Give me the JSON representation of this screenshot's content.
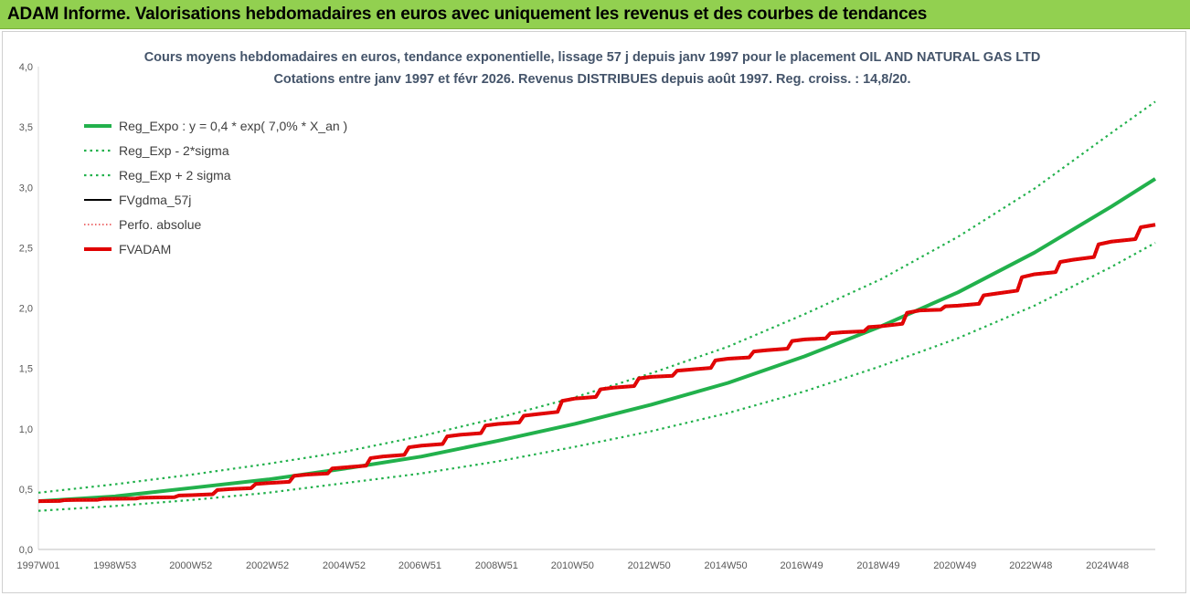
{
  "banner": {
    "title": "ADAM Informe. Valorisations hebdomadaires en euros avec uniquement les revenus et des courbes de tendances"
  },
  "chart_data": {
    "type": "line",
    "title_line1": "Cours moyens hebdomadaires en euros, tendance exponentielle, lissage 57 j depuis janv 1997 pour le placement OIL AND NATURAL GAS LTD",
    "title_line2": "Cotations entre janv 1997 et févr 2026. Revenus DISTRIBUES depuis août 1997. Reg. croiss. : 14,8/20.",
    "xlabel": "",
    "ylabel": "",
    "x_ticks": [
      "1997W01",
      "1998W53",
      "2000W52",
      "2002W52",
      "2004W52",
      "2006W51",
      "2008W51",
      "2010W50",
      "2012W50",
      "2014W50",
      "2016W49",
      "2018W49",
      "2020W49",
      "2022W48",
      "2024W48"
    ],
    "y_ticks": [
      "0,0",
      "0,5",
      "1,0",
      "1,5",
      "2,0",
      "2,5",
      "3,0",
      "3,5",
      "4,0"
    ],
    "xlim": [
      1997.0,
      2026.15
    ],
    "ylim": [
      0,
      4.0
    ],
    "grid": false,
    "legend_position": "top-left",
    "series": [
      {
        "name": "Reg_Expo : y = 0,4 * exp( 7,0% *  X_an )",
        "color": "#22b14c",
        "style": "solid-thick",
        "x": [
          1997,
          1999,
          2001,
          2003,
          2005,
          2007,
          2009,
          2011,
          2013,
          2015,
          2017,
          2019,
          2021,
          2023,
          2025,
          2026.15
        ],
        "y": [
          0.4,
          0.44,
          0.51,
          0.58,
          0.67,
          0.77,
          0.9,
          1.04,
          1.2,
          1.38,
          1.6,
          1.85,
          2.13,
          2.46,
          2.84,
          3.07
        ]
      },
      {
        "name": "Reg_Exp - 2*sigma",
        "color": "#22b14c",
        "style": "dotted",
        "x": [
          1997,
          1999,
          2001,
          2003,
          2005,
          2007,
          2009,
          2011,
          2013,
          2015,
          2017,
          2019,
          2021,
          2023,
          2025,
          2026.15
        ],
        "y": [
          0.32,
          0.36,
          0.41,
          0.47,
          0.55,
          0.63,
          0.73,
          0.85,
          0.98,
          1.13,
          1.31,
          1.52,
          1.75,
          2.02,
          2.34,
          2.54
        ]
      },
      {
        "name": "Reg_Exp + 2 sigma",
        "color": "#22b14c",
        "style": "dotted",
        "x": [
          1997,
          1999,
          2001,
          2003,
          2005,
          2007,
          2009,
          2011,
          2013,
          2015,
          2017,
          2019,
          2021,
          2023,
          2025,
          2026.15
        ],
        "y": [
          0.47,
          0.54,
          0.62,
          0.71,
          0.81,
          0.94,
          1.09,
          1.26,
          1.46,
          1.68,
          1.95,
          2.24,
          2.59,
          2.99,
          3.45,
          3.71
        ]
      },
      {
        "name": "FVgdma_57j",
        "color": "#000000",
        "style": "solid",
        "x": [
          1997,
          1998,
          1999,
          2000,
          2001,
          2002,
          2003,
          2004,
          2005,
          2006,
          2007,
          2008,
          2009,
          2010,
          2011,
          2012,
          2013,
          2014,
          2015,
          2016,
          2017,
          2018,
          2019,
          2020,
          2021,
          2022,
          2023,
          2024,
          2025,
          2026.15
        ],
        "y": [
          0.4,
          0.41,
          0.42,
          0.43,
          0.45,
          0.5,
          0.55,
          0.62,
          0.68,
          0.77,
          0.86,
          0.95,
          1.04,
          1.12,
          1.25,
          1.34,
          1.43,
          1.49,
          1.58,
          1.65,
          1.74,
          1.8,
          1.85,
          1.98,
          2.02,
          2.12,
          2.28,
          2.4,
          2.55,
          2.69
        ]
      },
      {
        "name": "Perfo. absolue",
        "color": "#e41a1c",
        "style": "dotted-thin",
        "x": [
          1997,
          1998,
          1999,
          2000,
          2001,
          2002,
          2003,
          2004,
          2005,
          2006,
          2007,
          2008,
          2009,
          2010,
          2011,
          2012,
          2013,
          2014,
          2015,
          2016,
          2017,
          2018,
          2019,
          2020,
          2021,
          2022,
          2023,
          2024,
          2025,
          2026.15
        ],
        "y": [
          0.4,
          0.41,
          0.42,
          0.43,
          0.45,
          0.5,
          0.55,
          0.62,
          0.68,
          0.77,
          0.86,
          0.95,
          1.04,
          1.12,
          1.25,
          1.34,
          1.43,
          1.49,
          1.58,
          1.65,
          1.74,
          1.8,
          1.85,
          1.98,
          2.02,
          2.12,
          2.28,
          2.4,
          2.55,
          2.69
        ]
      },
      {
        "name": "FVADAM",
        "color": "#e00000",
        "style": "solid-thick",
        "x": [
          1997,
          1998,
          1999,
          2000,
          2001,
          2002,
          2003,
          2004,
          2005,
          2006,
          2007,
          2008,
          2009,
          2010,
          2011,
          2012,
          2013,
          2014,
          2015,
          2016,
          2017,
          2018,
          2019,
          2020,
          2021,
          2022,
          2023,
          2024,
          2025,
          2026.15
        ],
        "y": [
          0.4,
          0.41,
          0.42,
          0.43,
          0.45,
          0.5,
          0.55,
          0.62,
          0.68,
          0.77,
          0.86,
          0.95,
          1.04,
          1.12,
          1.25,
          1.34,
          1.43,
          1.49,
          1.58,
          1.65,
          1.74,
          1.8,
          1.85,
          1.98,
          2.02,
          2.12,
          2.28,
          2.4,
          2.55,
          2.69
        ]
      }
    ]
  }
}
